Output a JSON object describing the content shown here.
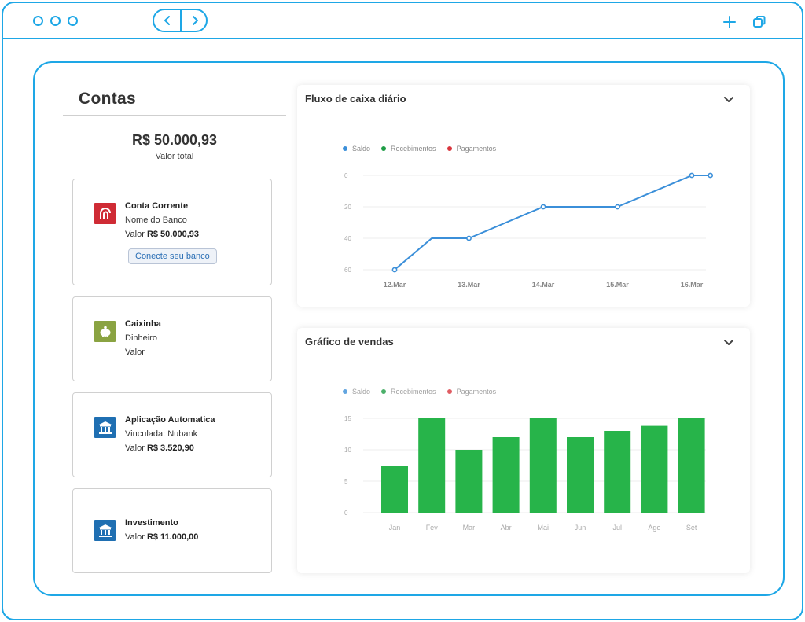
{
  "colors": {
    "accent": "#1ea7e6",
    "saldo": "#3b8fd9",
    "recebimentos": "#1f9d46",
    "pagamentos": "#d9353d",
    "bar": "#27b44a"
  },
  "window": {
    "controls": [
      "dot",
      "dot",
      "dot"
    ],
    "nav_back_icon": "chevron-left-icon",
    "nav_forward_icon": "chevron-right-icon"
  },
  "accounts": {
    "title": "Contas",
    "total_value": "R$ 50.000,93",
    "total_label": "Valor total",
    "items": [
      {
        "name": "Conta Corrente",
        "line1": "Nome do Banco",
        "value_prefix": "Valor",
        "value": "R$ 50.000,93",
        "icon": "bank-logo-icon",
        "button": "Conecte seu banco"
      },
      {
        "name": "Caixinha",
        "line1": "Dinheiro",
        "value_prefix": "Valor",
        "value": "",
        "icon": "piggy-bank-icon"
      },
      {
        "name": "Aplicação Automatica",
        "line1": "Vinculada: Nubank",
        "value_prefix": "Valor",
        "value": "R$ 3.520,90",
        "icon": "institution-icon"
      },
      {
        "name": "Investimento",
        "value_prefix": "Valor",
        "value": "R$ 11.000,00",
        "icon": "institution-icon"
      }
    ]
  },
  "cashflow": {
    "title": "Fluxo de caixa diário",
    "legend": [
      "Saldo",
      "Recebimentos",
      "Pagamentos"
    ]
  },
  "sales": {
    "title": "Gráfico de vendas",
    "legend": [
      "Saldo",
      "Recebimentos",
      "Pagamentos"
    ]
  },
  "chart_data": [
    {
      "type": "line",
      "title": "Fluxo de caixa diário",
      "x_ticks": [
        "12.Mar",
        "13.Mar",
        "14.Mar",
        "15.Mar",
        "16.Mar"
      ],
      "y_ticks": [
        "0",
        "20",
        "40",
        "60"
      ],
      "ylim": [
        0,
        60
      ],
      "y_inverted": true,
      "grid": true,
      "legend_position": "top-left",
      "series": [
        {
          "name": "Saldo",
          "x": [
            0,
            0.5,
            1,
            2,
            3,
            4,
            4.25
          ],
          "y": [
            60,
            40,
            40,
            20,
            20,
            0,
            0
          ],
          "markers": [
            true,
            false,
            true,
            true,
            true,
            true,
            true
          ]
        }
      ]
    },
    {
      "type": "bar",
      "title": "Gráfico de vendas",
      "categories": [
        "Jan",
        "Fev",
        "Mar",
        "Abr",
        "Mai",
        "Jun",
        "Jul",
        "Ago",
        "Set"
      ],
      "y_ticks": [
        "0",
        "5",
        "10",
        "15"
      ],
      "ylim": [
        0,
        15
      ],
      "grid": true,
      "legend_position": "top-left",
      "series": [
        {
          "name": "Recebimentos",
          "values": [
            7.5,
            15,
            10,
            12,
            15,
            12,
            13,
            13.8,
            15
          ]
        }
      ]
    }
  ]
}
